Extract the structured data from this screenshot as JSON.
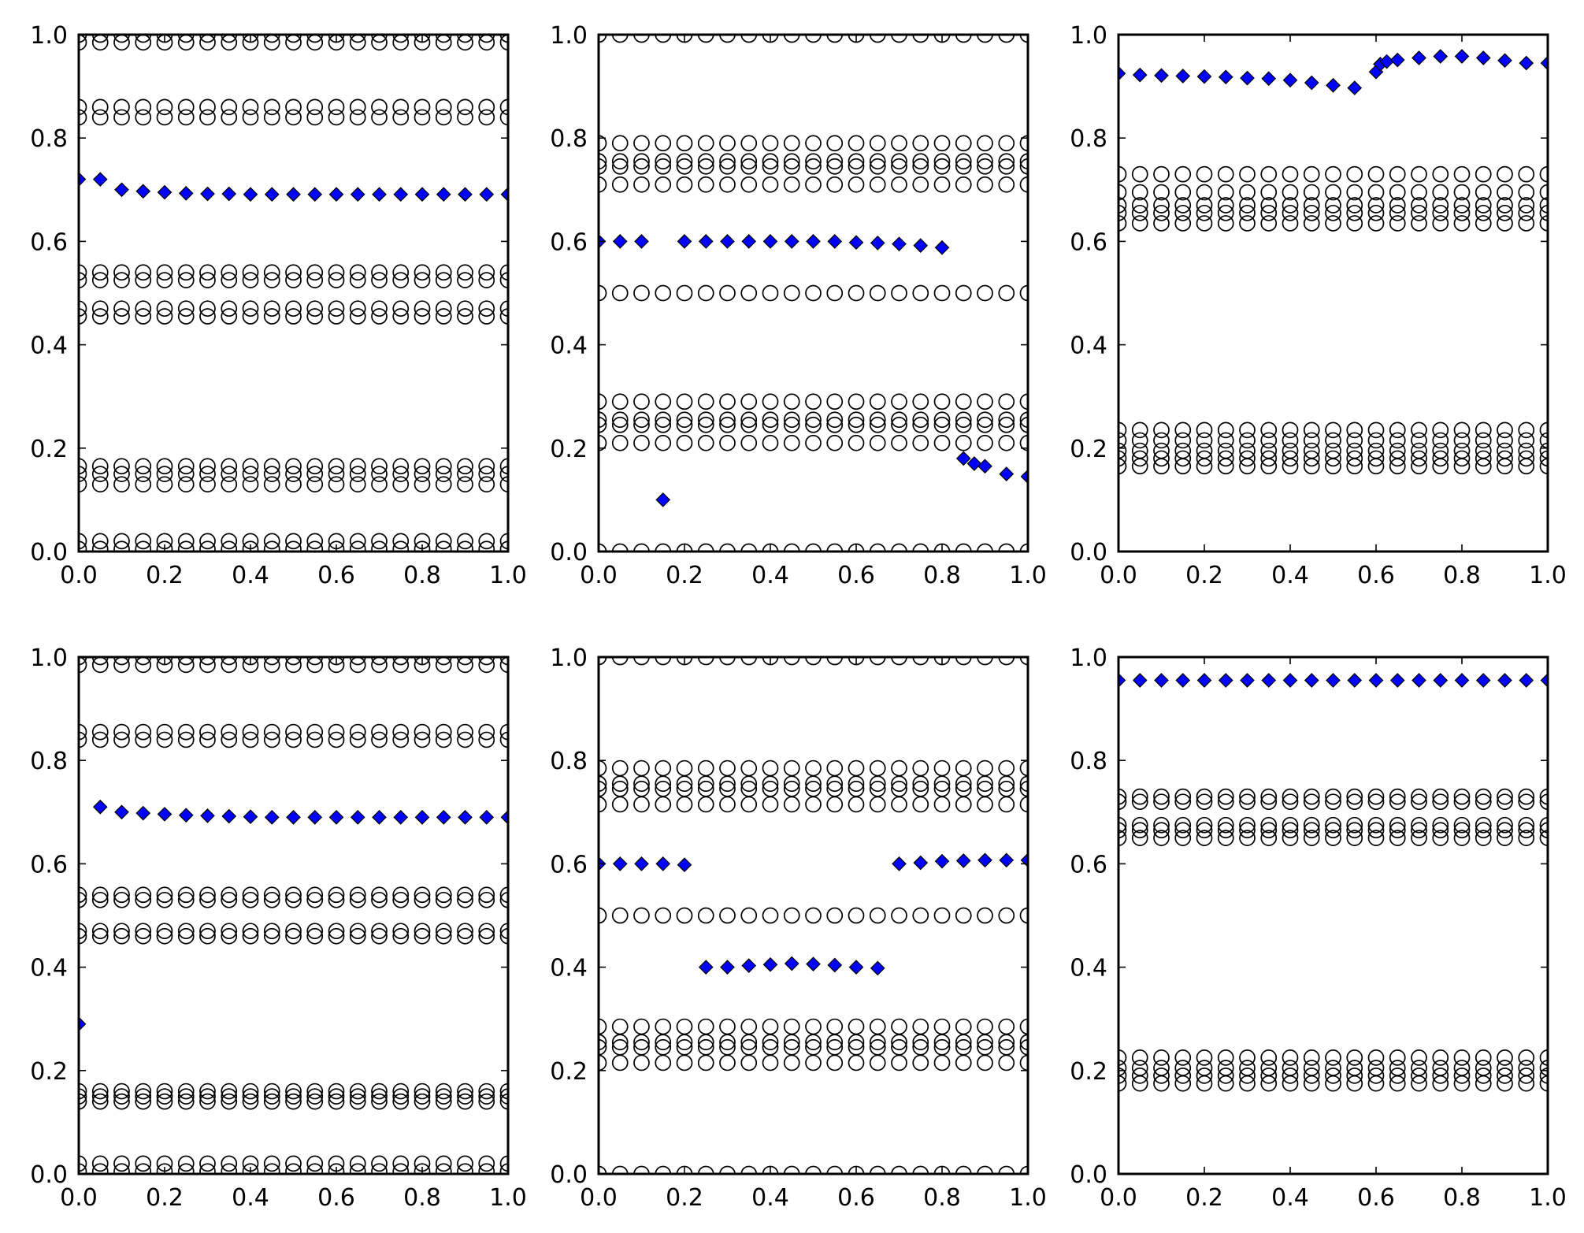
{
  "figure": {
    "rows": 2,
    "cols": 3,
    "colors": {
      "diamond": "#0000ff",
      "ring": "#000000",
      "background": "#ffffff"
    }
  },
  "chart_data": [
    {
      "type": "scatter",
      "panel": "top-left",
      "xlim": [
        0,
        1
      ],
      "ylim": [
        0,
        1
      ],
      "xticks": [
        "0.0",
        "0.2",
        "0.4",
        "0.6",
        "0.8",
        "1.0"
      ],
      "yticks": [
        "0.0",
        "0.2",
        "0.4",
        "0.6",
        "0.8",
        "1.0"
      ],
      "grid": false,
      "rings": {
        "x": [
          0,
          0.05,
          0.1,
          0.15,
          0.2,
          0.25,
          0.3,
          0.35,
          0.4,
          0.45,
          0.5,
          0.55,
          0.6,
          0.65,
          0.7,
          0.75,
          0.8,
          0.85,
          0.9,
          0.95,
          1.0
        ],
        "levels": [
          0.005,
          0.02,
          0.13,
          0.15,
          0.165,
          0.455,
          0.47,
          0.525,
          0.54,
          0.84,
          0.86,
          0.985,
          1.0
        ]
      },
      "diamonds": {
        "x": [
          0,
          0.05,
          0.1,
          0.15,
          0.2,
          0.25,
          0.3,
          0.35,
          0.4,
          0.45,
          0.5,
          0.55,
          0.6,
          0.65,
          0.7,
          0.75,
          0.8,
          0.85,
          0.9,
          0.95,
          1.0
        ],
        "y": [
          0.72,
          0.72,
          0.7,
          0.697,
          0.695,
          0.693,
          0.692,
          0.692,
          0.691,
          0.691,
          0.691,
          0.691,
          0.691,
          0.691,
          0.691,
          0.691,
          0.691,
          0.691,
          0.691,
          0.691,
          0.691
        ]
      }
    },
    {
      "type": "scatter",
      "panel": "top-center",
      "xlim": [
        0,
        1
      ],
      "ylim": [
        0,
        1
      ],
      "xticks": [
        "0.0",
        "0.2",
        "0.4",
        "0.6",
        "0.8",
        "1.0"
      ],
      "yticks": [
        "0.0",
        "0.2",
        "0.4",
        "0.6",
        "0.8",
        "1.0"
      ],
      "grid": false,
      "rings": {
        "x": [
          0,
          0.05,
          0.1,
          0.15,
          0.2,
          0.25,
          0.3,
          0.35,
          0.4,
          0.45,
          0.5,
          0.55,
          0.6,
          0.65,
          0.7,
          0.75,
          0.8,
          0.85,
          0.9,
          0.95,
          1.0
        ],
        "levels": [
          0.0,
          0.21,
          0.245,
          0.255,
          0.29,
          0.5,
          0.71,
          0.745,
          0.755,
          0.79,
          1.0
        ]
      },
      "diamonds": {
        "x": [
          0,
          0.05,
          0.1,
          0.15,
          0.2,
          0.25,
          0.3,
          0.35,
          0.4,
          0.45,
          0.5,
          0.55,
          0.6,
          0.65,
          0.7,
          0.75,
          0.8,
          0.85,
          0.875,
          0.9,
          0.95,
          1.0
        ],
        "y": [
          0.6,
          0.6,
          0.6,
          0.1,
          0.6,
          0.6,
          0.6,
          0.6,
          0.6,
          0.6,
          0.6,
          0.6,
          0.598,
          0.597,
          0.595,
          0.592,
          0.588,
          0.18,
          0.17,
          0.165,
          0.15,
          0.145
        ]
      }
    },
    {
      "type": "scatter",
      "panel": "top-right",
      "xlim": [
        0,
        1
      ],
      "ylim": [
        0,
        1
      ],
      "xticks": [
        "0.0",
        "0.2",
        "0.4",
        "0.6",
        "0.8",
        "1.0"
      ],
      "yticks": [
        "0.0",
        "0.2",
        "0.4",
        "0.6",
        "0.8",
        "1.0"
      ],
      "grid": false,
      "rings": {
        "x": [
          0,
          0.05,
          0.1,
          0.15,
          0.2,
          0.25,
          0.3,
          0.35,
          0.4,
          0.45,
          0.5,
          0.55,
          0.6,
          0.65,
          0.7,
          0.75,
          0.8,
          0.85,
          0.9,
          0.95,
          1.0
        ],
        "levels": [
          0.165,
          0.18,
          0.195,
          0.215,
          0.235,
          0.635,
          0.655,
          0.67,
          0.695,
          0.73
        ]
      },
      "diamonds": {
        "x": [
          0,
          0.05,
          0.1,
          0.15,
          0.2,
          0.25,
          0.3,
          0.35,
          0.4,
          0.45,
          0.5,
          0.55,
          0.6,
          0.61,
          0.625,
          0.65,
          0.7,
          0.75,
          0.8,
          0.85,
          0.9,
          0.95,
          1.0
        ],
        "y": [
          0.925,
          0.922,
          0.921,
          0.92,
          0.919,
          0.918,
          0.916,
          0.915,
          0.912,
          0.907,
          0.902,
          0.897,
          0.928,
          0.943,
          0.948,
          0.951,
          0.955,
          0.958,
          0.958,
          0.955,
          0.95,
          0.945,
          0.945
        ]
      }
    },
    {
      "type": "scatter",
      "panel": "bottom-left",
      "xlim": [
        0,
        1
      ],
      "ylim": [
        0,
        1
      ],
      "xticks": [
        "0.0",
        "0.2",
        "0.4",
        "0.6",
        "0.8",
        "1.0"
      ],
      "yticks": [
        "0.0",
        "0.2",
        "0.4",
        "0.6",
        "0.8",
        "1.0"
      ],
      "grid": false,
      "rings": {
        "x": [
          0,
          0.05,
          0.1,
          0.15,
          0.2,
          0.25,
          0.3,
          0.35,
          0.4,
          0.45,
          0.5,
          0.55,
          0.6,
          0.65,
          0.7,
          0.75,
          0.8,
          0.85,
          0.9,
          0.95,
          1.0
        ],
        "levels": [
          0.005,
          0.02,
          0.14,
          0.15,
          0.16,
          0.46,
          0.47,
          0.53,
          0.54,
          0.84,
          0.855,
          0.985,
          1.0
        ]
      },
      "diamonds": {
        "x": [
          0,
          0.05,
          0.1,
          0.15,
          0.2,
          0.25,
          0.3,
          0.35,
          0.4,
          0.45,
          0.5,
          0.55,
          0.6,
          0.65,
          0.7,
          0.75,
          0.8,
          0.85,
          0.9,
          0.95,
          1.0
        ],
        "y": [
          0.29,
          0.71,
          0.7,
          0.698,
          0.696,
          0.694,
          0.693,
          0.692,
          0.691,
          0.69,
          0.69,
          0.69,
          0.69,
          0.69,
          0.69,
          0.69,
          0.69,
          0.69,
          0.69,
          0.69,
          0.69
        ]
      }
    },
    {
      "type": "scatter",
      "panel": "bottom-center",
      "xlim": [
        0,
        1
      ],
      "ylim": [
        0,
        1
      ],
      "xticks": [
        "0.0",
        "0.2",
        "0.4",
        "0.6",
        "0.8",
        "1.0"
      ],
      "yticks": [
        "0.0",
        "0.2",
        "0.4",
        "0.6",
        "0.8",
        "1.0"
      ],
      "grid": false,
      "rings": {
        "x": [
          0,
          0.05,
          0.1,
          0.15,
          0.2,
          0.25,
          0.3,
          0.35,
          0.4,
          0.45,
          0.5,
          0.55,
          0.6,
          0.65,
          0.7,
          0.75,
          0.8,
          0.85,
          0.9,
          0.95,
          1.0
        ],
        "levels": [
          0.0,
          0.215,
          0.245,
          0.255,
          0.285,
          0.5,
          0.715,
          0.745,
          0.755,
          0.785,
          1.0
        ]
      },
      "diamonds": {
        "x": [
          0,
          0.05,
          0.1,
          0.15,
          0.2,
          0.25,
          0.3,
          0.35,
          0.4,
          0.45,
          0.5,
          0.55,
          0.6,
          0.65,
          0.7,
          0.75,
          0.8,
          0.85,
          0.9,
          0.95,
          1.0
        ],
        "y": [
          0.6,
          0.6,
          0.6,
          0.6,
          0.598,
          0.4,
          0.4,
          0.403,
          0.405,
          0.407,
          0.406,
          0.404,
          0.4,
          0.398,
          0.6,
          0.602,
          0.605,
          0.606,
          0.607,
          0.607,
          0.607
        ]
      }
    },
    {
      "type": "scatter",
      "panel": "bottom-right",
      "xlim": [
        0,
        1
      ],
      "ylim": [
        0,
        1
      ],
      "xticks": [
        "0.0",
        "0.2",
        "0.4",
        "0.6",
        "0.8",
        "1.0"
      ],
      "yticks": [
        "0.0",
        "0.2",
        "0.4",
        "0.6",
        "0.8",
        "1.0"
      ],
      "grid": false,
      "rings": {
        "x": [
          0,
          0.05,
          0.1,
          0.15,
          0.2,
          0.25,
          0.3,
          0.35,
          0.4,
          0.45,
          0.5,
          0.55,
          0.6,
          0.65,
          0.7,
          0.75,
          0.8,
          0.85,
          0.9,
          0.95,
          1.0
        ],
        "levels": [
          0.175,
          0.19,
          0.205,
          0.225,
          0.65,
          0.665,
          0.675,
          0.72,
          0.73
        ]
      },
      "diamonds": {
        "x": [
          0,
          0.05,
          0.1,
          0.15,
          0.2,
          0.25,
          0.3,
          0.35,
          0.4,
          0.45,
          0.5,
          0.55,
          0.6,
          0.65,
          0.7,
          0.75,
          0.8,
          0.85,
          0.9,
          0.95,
          1.0
        ],
        "y": [
          0.955,
          0.955,
          0.955,
          0.955,
          0.955,
          0.955,
          0.955,
          0.955,
          0.955,
          0.955,
          0.955,
          0.955,
          0.955,
          0.955,
          0.955,
          0.955,
          0.955,
          0.955,
          0.955,
          0.955,
          0.955
        ]
      }
    }
  ]
}
